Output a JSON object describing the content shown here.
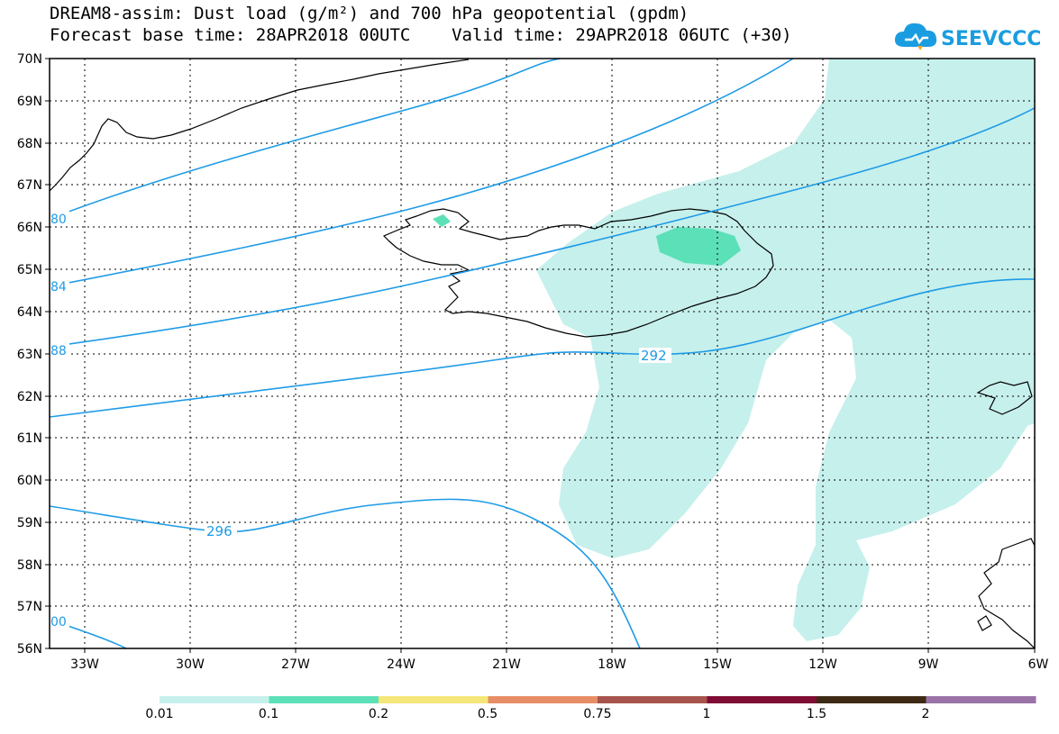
{
  "title": {
    "line1": "DREAM8-assim: Dust load (g/m²) and 700 hPa geopotential (gpdm)",
    "line2": "Forecast base time: 28APR2018 00UTC    Valid time: 29APR2018 06UTC (+30)"
  },
  "logo": {
    "text": "SEEVCCC",
    "color": "#1a9de0"
  },
  "axes": {
    "lat_labels": [
      "70N",
      "69N",
      "68N",
      "67N",
      "66N",
      "65N",
      "64N",
      "63N",
      "62N",
      "61N",
      "60N",
      "59N",
      "58N",
      "57N",
      "56N"
    ],
    "lon_labels": [
      "33W",
      "30W",
      "27W",
      "24W",
      "21W",
      "18W",
      "15W",
      "12W",
      "9W",
      "6W"
    ]
  },
  "contours": {
    "color": "#1e9be6",
    "labels": [
      {
        "id": "c280",
        "text": "80"
      },
      {
        "id": "c284",
        "text": "84"
      },
      {
        "id": "c288",
        "text": "88"
      },
      {
        "id": "c292",
        "text": "292"
      },
      {
        "id": "c296",
        "text": "296"
      },
      {
        "id": "c300",
        "text": "00"
      }
    ]
  },
  "dust_colors": {
    "light": "#c6f0ec",
    "medium": "#5ce0b8"
  },
  "colorbar": {
    "colors": [
      "#c6f0ec",
      "#5ce0b8",
      "#f5e67a",
      "#e88e66",
      "#a8544e",
      "#7e0c34",
      "#3e2a14",
      "#9a72a8"
    ],
    "labels": [
      "0.01",
      "0.1",
      "0.2",
      "0.5",
      "0.75",
      "1",
      "1.5",
      "2"
    ]
  }
}
